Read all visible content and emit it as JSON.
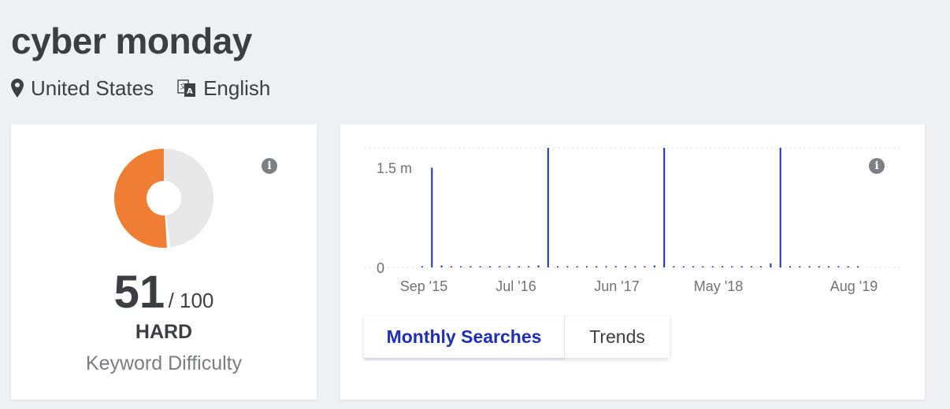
{
  "keyword": "cyber monday",
  "location": "United States",
  "language": "English",
  "difficulty": {
    "score": "51",
    "max": "/ 100",
    "level": "HARD",
    "label": "Keyword Difficulty",
    "fraction": 0.51,
    "fill_color": "#ef7d32",
    "track_color": "#e8e8e8"
  },
  "tabs": {
    "monthly": "Monthly Searches",
    "trends": "Trends"
  },
  "chart_data": {
    "type": "bar",
    "ylabels": [
      "1.5 m",
      "0"
    ],
    "xlabels": [
      "Sep '15",
      "Jul '16",
      "Jun '17",
      "May '18",
      "Aug '19"
    ],
    "ylim": [
      0,
      1800000
    ],
    "bar_color": "#1f2fb4",
    "values": [
      15000,
      1500000,
      30000,
      15000,
      15000,
      15000,
      15000,
      15000,
      15000,
      15000,
      15000,
      15000,
      30000,
      1800000,
      15000,
      15000,
      15000,
      15000,
      15000,
      15000,
      15000,
      15000,
      15000,
      15000,
      30000,
      1800000,
      15000,
      15000,
      15000,
      15000,
      15000,
      15000,
      15000,
      15000,
      15000,
      15000,
      60000,
      1800000,
      15000,
      15000,
      15000,
      15000,
      15000,
      15000,
      15000,
      15000
    ]
  }
}
